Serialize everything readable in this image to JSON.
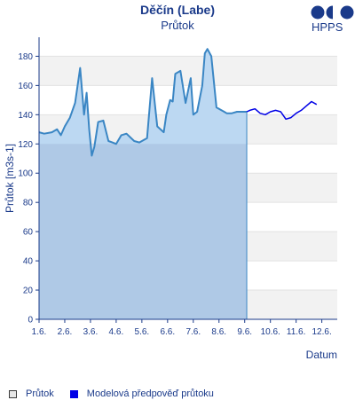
{
  "header": {
    "title": "Děčín (Labe)",
    "subtitle": "Průtok",
    "logo_text": "HPPS"
  },
  "legend": {
    "observed_label": "Průtok",
    "model_label": "Modelová předpověď průtoku"
  },
  "colors": {
    "observed_line": "#3a86c4",
    "observed_fill": "#bcd8f2",
    "observed_fill_low": "#c7d7e8",
    "model_line": "#0000e6",
    "band": "#f2f2f2",
    "axis": "#1a3a8a"
  },
  "chart_data": {
    "type": "line",
    "title": "Děčín (Labe)",
    "subtitle": "Průtok",
    "xlabel": "Datum",
    "ylabel": "Průtok [m3s-1]",
    "xlim": [
      1.0,
      12.6
    ],
    "ylim": [
      0,
      193
    ],
    "yticks": [
      0,
      20,
      40,
      60,
      80,
      100,
      120,
      140,
      160,
      180
    ],
    "xticks": [
      {
        "value": 1,
        "label": "1.6."
      },
      {
        "value": 2,
        "label": "2.6."
      },
      {
        "value": 3,
        "label": "3.6."
      },
      {
        "value": 4,
        "label": "4.6."
      },
      {
        "value": 5,
        "label": "5.6."
      },
      {
        "value": 6,
        "label": "6.6."
      },
      {
        "value": 7,
        "label": "7.6."
      },
      {
        "value": 8,
        "label": "8.6."
      },
      {
        "value": 9,
        "label": "9.6."
      },
      {
        "value": 10,
        "label": "10.6."
      },
      {
        "value": 11,
        "label": "11.6."
      },
      {
        "value": 12,
        "label": "12.6."
      }
    ],
    "alert_level": 120,
    "series": [
      {
        "name": "Průtok",
        "kind": "observed",
        "x": [
          1.0,
          1.2,
          1.5,
          1.7,
          1.85,
          2.0,
          2.2,
          2.4,
          2.6,
          2.75,
          2.85,
          2.95,
          3.05,
          3.15,
          3.3,
          3.5,
          3.7,
          3.85,
          4.0,
          4.2,
          4.4,
          4.7,
          4.9,
          5.2,
          5.4,
          5.6,
          5.85,
          5.95,
          6.1,
          6.2,
          6.3,
          6.5,
          6.7,
          6.9,
          7.0,
          7.15,
          7.35,
          7.45,
          7.55,
          7.7,
          7.9,
          8.1,
          8.2,
          8.3,
          8.5,
          8.7,
          8.9,
          9.08
        ],
        "y": [
          128,
          127,
          128,
          130,
          126,
          132,
          138,
          148,
          172,
          140,
          155,
          130,
          112,
          118,
          135,
          136,
          122,
          121,
          120,
          126,
          127,
          122,
          121,
          124,
          165,
          132,
          128,
          140,
          150,
          149,
          168,
          170,
          148,
          165,
          140,
          142,
          160,
          182,
          185,
          180,
          145,
          143,
          142,
          141,
          141,
          142,
          142,
          142
        ]
      },
      {
        "name": "Modelová předpověď průtoku",
        "kind": "model",
        "x": [
          9.08,
          9.2,
          9.4,
          9.6,
          9.8,
          10.0,
          10.2,
          10.4,
          10.6,
          10.8,
          11.0,
          11.2,
          11.4,
          11.6,
          11.8
        ],
        "y": [
          142,
          143,
          144,
          141,
          140,
          142,
          143,
          142,
          137,
          138,
          141,
          143,
          146,
          149,
          147
        ]
      }
    ]
  }
}
